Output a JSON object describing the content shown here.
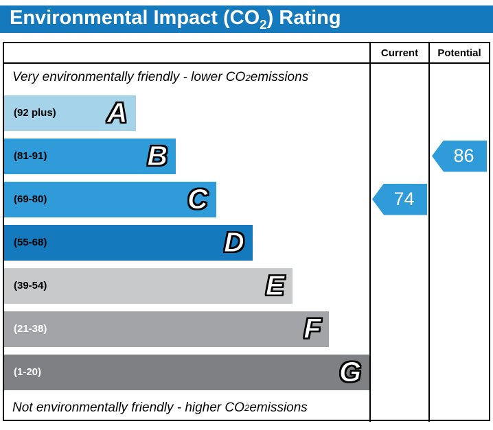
{
  "title": {
    "prefix": "Environmental Impact (CO",
    "subscript": "2",
    "suffix": ") Rating"
  },
  "columns": {
    "current": "Current",
    "potential": "Potential"
  },
  "notes": {
    "top": {
      "prefix": "Very environmentally friendly - lower CO",
      "subscript": "2",
      "suffix": " emissions"
    },
    "bottom": {
      "prefix": "Not environmentally friendly - higher CO",
      "subscript": "2",
      "suffix": " emissions"
    }
  },
  "bands": [
    {
      "letter": "A",
      "label": "(92 plus)",
      "color": "#a5d3ea",
      "width_pct": 36,
      "label_color": "#000000"
    },
    {
      "letter": "B",
      "label": "(81-91)",
      "color": "#2f9bd8",
      "width_pct": 47,
      "label_color": "#000000"
    },
    {
      "letter": "C",
      "label": "(69-80)",
      "color": "#2f9bd8",
      "width_pct": 58,
      "label_color": "#000000"
    },
    {
      "letter": "D",
      "label": "(55-68)",
      "color": "#1479bd",
      "width_pct": 68,
      "label_color": "#000000"
    },
    {
      "letter": "E",
      "label": "(39-54)",
      "color": "#c8c9cb",
      "width_pct": 79,
      "label_color": "#000000"
    },
    {
      "letter": "F",
      "label": "(21-38)",
      "color": "#a2a4a7",
      "width_pct": 89,
      "label_color": "#ffffff"
    },
    {
      "letter": "G",
      "label": "(1-20)",
      "color": "#7e8083",
      "width_pct": 100,
      "label_color": "#ffffff"
    }
  ],
  "current": {
    "value": "74",
    "band_letter": "C",
    "band_index": 2,
    "color": "#2f9bd8"
  },
  "potential": {
    "value": "86",
    "band_letter": "B",
    "band_index": 1,
    "color": "#2f9bd8"
  },
  "theme": {
    "title_bg": "#1479bd",
    "border": "#000000"
  },
  "chart_data": {
    "type": "bar",
    "title": "Environmental Impact (CO2) Rating",
    "categories": [
      "A (92 plus)",
      "B (81-91)",
      "C (69-80)",
      "D (55-68)",
      "E (39-54)",
      "F (21-38)",
      "G (1-20)"
    ],
    "values": [
      36,
      47,
      58,
      68,
      79,
      89,
      100
    ],
    "value_meaning": "relative bar width, percent of band area",
    "band_colors": [
      "#a5d3ea",
      "#2f9bd8",
      "#2f9bd8",
      "#1479bd",
      "#c8c9cb",
      "#a2a4a7",
      "#7e8083"
    ],
    "markers": [
      {
        "name": "Current",
        "value": 74,
        "band": "C"
      },
      {
        "name": "Potential",
        "value": 86,
        "band": "B"
      }
    ],
    "annotations": [
      "Very environmentally friendly - lower CO2 emissions",
      "Not environmentally friendly - higher CO2 emissions"
    ],
    "legend_position": "none",
    "grid": false
  }
}
